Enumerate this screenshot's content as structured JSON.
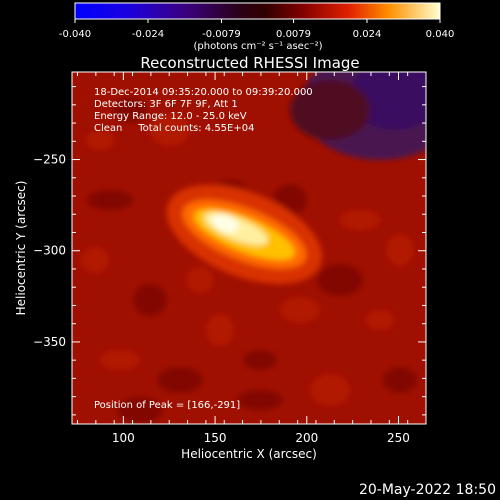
{
  "chart_data": {
    "type": "heatmap",
    "title": "Reconstructed RHESSI Image",
    "xlabel": "Heliocentric X (arcsec)",
    "ylabel": "Heliocentric Y (arcsec)",
    "xlim": [
      72,
      265
    ],
    "ylim": [
      -395,
      -202
    ],
    "xticks": [
      100,
      150,
      200,
      250
    ],
    "yticks": [
      -250,
      -300,
      -350
    ],
    "colorbar": {
      "min": -0.04,
      "max": 0.04,
      "ticks": [
        "-0.040",
        "-0.024",
        "-0.0079",
        "0.0079",
        "0.024",
        "0.040"
      ],
      "tick_values": [
        -0.04,
        -0.024,
        -0.0079,
        0.0079,
        0.024,
        0.04
      ],
      "units": "(photons cm⁻² s⁻¹ asec⁻²)"
    },
    "annotations": [
      "18-Dec-2014 09:35:20.000 to 09:39:20.000",
      "Detectors: 3F 6F 7F 9F, Att 1",
      "Energy Range: 12.0 - 25.0 keV",
      "Clean     Total counts: 4.55E+04"
    ],
    "peak_label": "Position of Peak = [166,-291]",
    "peak": [
      166,
      -291
    ]
  },
  "footer_timestamp": "20-May-2022 18:50",
  "colors": {
    "background": "#000000",
    "text": "#ffffff"
  }
}
